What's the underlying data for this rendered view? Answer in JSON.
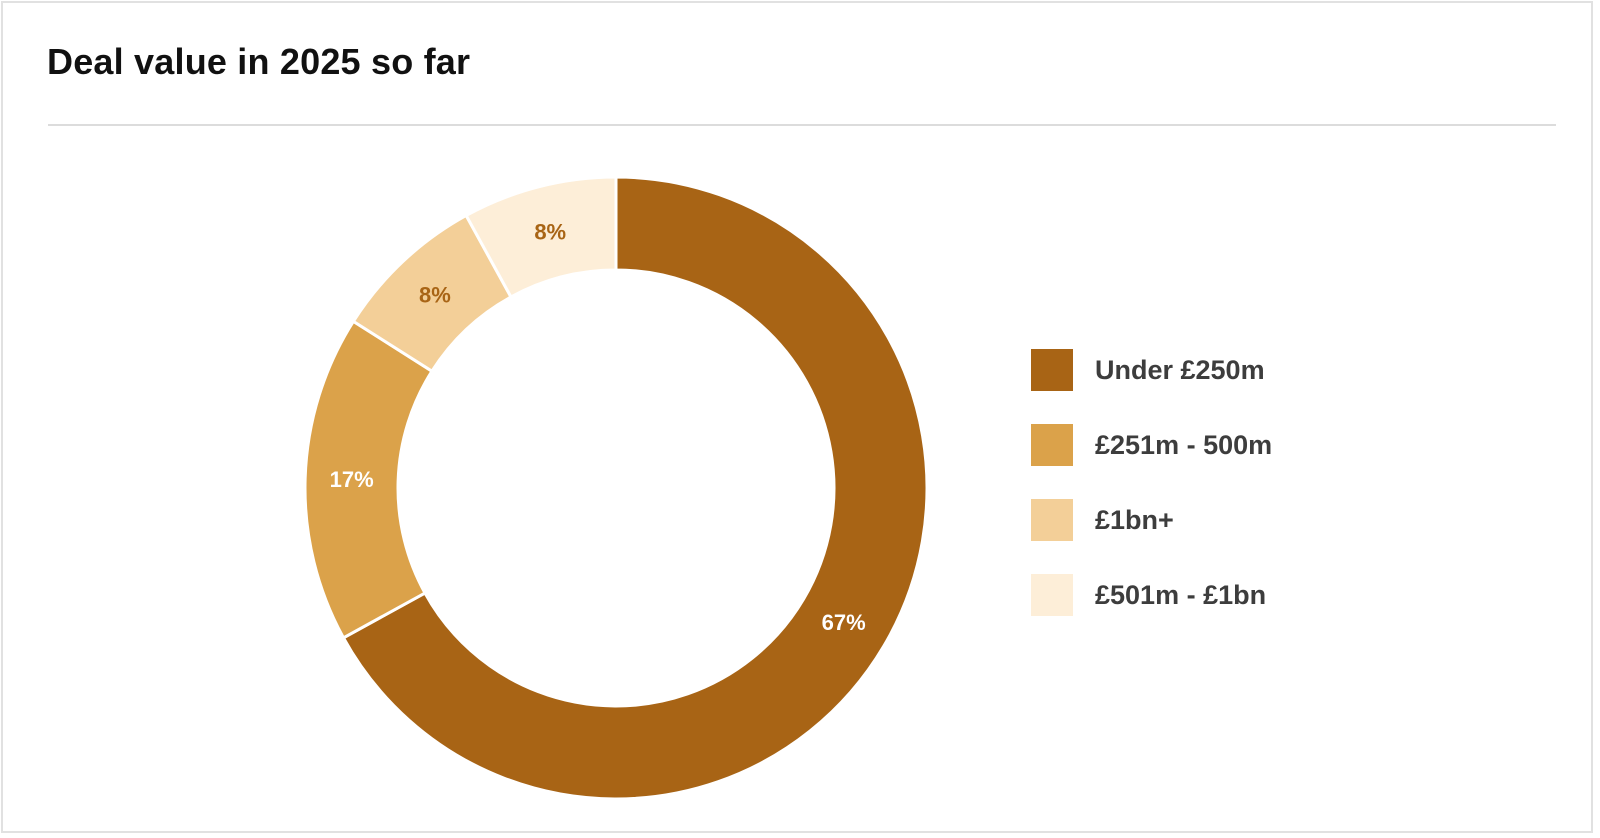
{
  "chart_data": {
    "type": "pie",
    "donut": true,
    "title": "Deal value in 2025 so far",
    "categories": [
      "Under £250m",
      "£251m - 500m",
      "£1bn+",
      "£501m - £1bn"
    ],
    "values": [
      67,
      17,
      8,
      8
    ],
    "labels": [
      "67%",
      "17%",
      "8%",
      "8%"
    ],
    "colors": [
      "#a86415",
      "#dba24a",
      "#f3cf98",
      "#fdeed8"
    ],
    "label_colors": [
      "#ffffff",
      "#ffffff",
      "#a86415",
      "#a86415"
    ],
    "legend_position": "right"
  }
}
